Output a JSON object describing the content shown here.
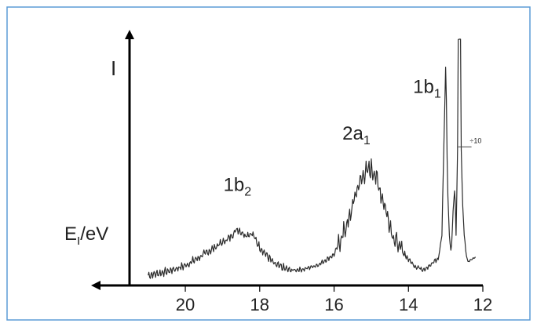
{
  "colors": {
    "border": "#5b9bd5",
    "axis": "#000000",
    "trace": "#2b2b2b",
    "text": "#222222"
  },
  "chart_data": {
    "type": "line",
    "title": "",
    "xlabel_main": "E",
    "xlabel_sub": "I",
    "xlabel_tail": "/eV",
    "ylabel": "I",
    "x_reversed": true,
    "xlim": [
      21.5,
      12
    ],
    "ylim": [
      0,
      1
    ],
    "grid": false,
    "legend": "none",
    "xticks": [
      {
        "value": 20,
        "label": "20"
      },
      {
        "value": 18,
        "label": "18"
      },
      {
        "value": 16,
        "label": "16"
      },
      {
        "value": 14,
        "label": "14"
      },
      {
        "value": 12,
        "label": "12"
      }
    ],
    "annotations": [
      {
        "id": "1b2",
        "main": "1b",
        "sub": "2",
        "x": 18.6,
        "y": 0.38
      },
      {
        "id": "2a1",
        "main": "2a",
        "sub": "1",
        "x": 15.4,
        "y": 0.59
      },
      {
        "id": "1b1",
        "main": "1b",
        "sub": "1",
        "x": 13.5,
        "y": 0.78
      },
      {
        "id": "scale",
        "main": "÷10",
        "sub": "",
        "x": 12.35,
        "y": 0.575
      }
    ],
    "series": [
      {
        "x": [
          21.0,
          20.5,
          20.0,
          19.5,
          19.0,
          18.8,
          18.6,
          18.4,
          18.2,
          18.0,
          17.6,
          17.2,
          16.8,
          16.4,
          16.0,
          15.8,
          15.6,
          15.4,
          15.2,
          15.0,
          14.9,
          14.8,
          14.6,
          14.4,
          14.2,
          14.0,
          13.8,
          13.6,
          13.4,
          13.3,
          13.2,
          13.1,
          13.05,
          13.0,
          12.98,
          12.95,
          12.9,
          12.85,
          12.8,
          12.75,
          12.72,
          12.7,
          12.68,
          12.66,
          12.62,
          12.6,
          12.58,
          12.55,
          12.5,
          12.45,
          12.4,
          12.3,
          12.2
        ],
        "y": [
          0.035,
          0.05,
          0.075,
          0.12,
          0.17,
          0.19,
          0.225,
          0.2,
          0.205,
          0.15,
          0.08,
          0.055,
          0.06,
          0.08,
          0.12,
          0.19,
          0.26,
          0.38,
          0.45,
          0.47,
          0.45,
          0.4,
          0.3,
          0.19,
          0.14,
          0.1,
          0.07,
          0.06,
          0.075,
          0.095,
          0.1,
          0.2,
          0.55,
          0.885,
          0.75,
          0.4,
          0.2,
          0.12,
          0.3,
          0.4,
          0.2,
          0.35,
          0.55,
          1.0,
          1.0,
          1.0,
          0.55,
          0.35,
          0.2,
          0.12,
          0.09,
          0.1,
          0.11
        ]
      }
    ]
  }
}
